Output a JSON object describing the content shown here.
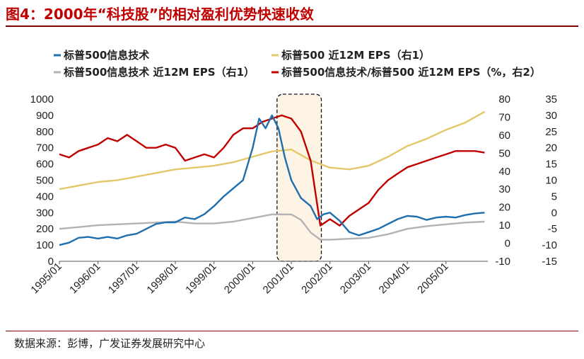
{
  "figure_title": "图4：2000年“科技股”的相对盈利优势快速收敛",
  "source": "数据来源：彭博，广发证券发展研究中心",
  "colors": {
    "blue": "#1f6fae",
    "yellow": "#e3c86a",
    "gray": "#b3b3b3",
    "red": "#c00000",
    "highlight": "#fdf4e6"
  },
  "chart_data": {
    "type": "line",
    "x_labels": [
      "1995/01",
      "1996/01",
      "1997/01",
      "1998/01",
      "1999/01",
      "2000/01",
      "2001/01",
      "2002/01",
      "2003/01",
      "2004/01",
      "2005/01"
    ],
    "left_axis": {
      "min": 0,
      "max": 1000,
      "ticks": [
        "0",
        "100",
        "200",
        "300",
        "400",
        "500",
        "600",
        "700",
        "800",
        "900",
        "1000"
      ]
    },
    "right1_axis": {
      "min": -10,
      "max": 80,
      "ticks": [
        "-10",
        "0",
        "10",
        "20",
        "30",
        "40",
        "50",
        "60",
        "70",
        "80"
      ]
    },
    "right2_axis": {
      "min": -15,
      "max": 35,
      "ticks": [
        "-15",
        "-10",
        "-5",
        "0",
        "5",
        "10",
        "15",
        "20",
        "25",
        "30",
        "35"
      ]
    },
    "highlight_range": [
      "2000/09",
      "2001/09"
    ],
    "series": [
      {
        "name": "标普500信息技术",
        "axis": "left",
        "color": "#1f6fae",
        "points": [
          [
            "1995/01",
            100
          ],
          [
            "1995/04",
            115
          ],
          [
            "1995/07",
            145
          ],
          [
            "1995/10",
            150
          ],
          [
            "1996/01",
            140
          ],
          [
            "1996/04",
            150
          ],
          [
            "1996/07",
            140
          ],
          [
            "1996/10",
            160
          ],
          [
            "1997/01",
            170
          ],
          [
            "1997/04",
            200
          ],
          [
            "1997/07",
            230
          ],
          [
            "1997/10",
            240
          ],
          [
            "1998/01",
            240
          ],
          [
            "1998/04",
            270
          ],
          [
            "1998/07",
            260
          ],
          [
            "1998/10",
            290
          ],
          [
            "1999/01",
            340
          ],
          [
            "1999/04",
            400
          ],
          [
            "1999/07",
            450
          ],
          [
            "1999/10",
            500
          ],
          [
            "2000/01",
            700
          ],
          [
            "2000/03",
            880
          ],
          [
            "2000/05",
            820
          ],
          [
            "2000/07",
            900
          ],
          [
            "2000/09",
            820
          ],
          [
            "2000/11",
            640
          ],
          [
            "2001/01",
            500
          ],
          [
            "2001/04",
            390
          ],
          [
            "2001/07",
            340
          ],
          [
            "2001/09",
            260
          ],
          [
            "2001/11",
            290
          ],
          [
            "2002/01",
            300
          ],
          [
            "2002/04",
            250
          ],
          [
            "2002/07",
            180
          ],
          [
            "2002/10",
            160
          ],
          [
            "2003/01",
            180
          ],
          [
            "2003/04",
            200
          ],
          [
            "2003/07",
            230
          ],
          [
            "2003/10",
            260
          ],
          [
            "2004/01",
            280
          ],
          [
            "2004/04",
            275
          ],
          [
            "2004/07",
            255
          ],
          [
            "2004/10",
            270
          ],
          [
            "2005/01",
            275
          ],
          [
            "2005/04",
            270
          ],
          [
            "2005/07",
            285
          ],
          [
            "2005/10",
            295
          ],
          [
            "2006/01",
            300
          ]
        ]
      },
      {
        "name": "标普500 近12M EPS（右1）",
        "axis": "right1",
        "color": "#e3c86a",
        "points": [
          [
            "1995/01",
            30
          ],
          [
            "1995/07",
            32
          ],
          [
            "1996/01",
            34
          ],
          [
            "1996/07",
            35
          ],
          [
            "1997/01",
            37
          ],
          [
            "1997/07",
            39
          ],
          [
            "1998/01",
            41
          ],
          [
            "1998/07",
            42
          ],
          [
            "1999/01",
            43
          ],
          [
            "1999/07",
            45
          ],
          [
            "2000/01",
            48
          ],
          [
            "2000/07",
            51
          ],
          [
            "2001/01",
            52
          ],
          [
            "2001/07",
            46
          ],
          [
            "2002/01",
            42
          ],
          [
            "2002/07",
            41
          ],
          [
            "2003/01",
            43
          ],
          [
            "2003/07",
            48
          ],
          [
            "2004/01",
            54
          ],
          [
            "2004/07",
            58
          ],
          [
            "2005/01",
            63
          ],
          [
            "2005/07",
            67
          ],
          [
            "2006/01",
            73
          ]
        ]
      },
      {
        "name": "标普500信息技术 近12M EPS（右1）",
        "axis": "right1",
        "color": "#b3b3b3",
        "points": [
          [
            "1995/01",
            8
          ],
          [
            "1995/07",
            9
          ],
          [
            "1996/01",
            10
          ],
          [
            "1996/07",
            10.5
          ],
          [
            "1997/01",
            11
          ],
          [
            "1997/07",
            11.5
          ],
          [
            "1998/01",
            12
          ],
          [
            "1998/07",
            11
          ],
          [
            "1999/01",
            11
          ],
          [
            "1999/07",
            12
          ],
          [
            "2000/01",
            14
          ],
          [
            "2000/07",
            16
          ],
          [
            "2001/01",
            16
          ],
          [
            "2001/04",
            13
          ],
          [
            "2001/07",
            6
          ],
          [
            "2001/10",
            2
          ],
          [
            "2002/01",
            2
          ],
          [
            "2002/07",
            2.5
          ],
          [
            "2003/01",
            3
          ],
          [
            "2003/07",
            5
          ],
          [
            "2004/01",
            8
          ],
          [
            "2004/07",
            9.5
          ],
          [
            "2005/01",
            10.5
          ],
          [
            "2005/07",
            11.5
          ],
          [
            "2006/01",
            12
          ]
        ]
      },
      {
        "name": "标普500信息技术/标普500 近12M EPS（%，右2）",
        "axis": "right2",
        "color": "#c00000",
        "points": [
          [
            "1995/01",
            18
          ],
          [
            "1995/04",
            17
          ],
          [
            "1995/07",
            19
          ],
          [
            "1995/10",
            20
          ],
          [
            "1996/01",
            21
          ],
          [
            "1996/04",
            23
          ],
          [
            "1996/07",
            22
          ],
          [
            "1996/10",
            24
          ],
          [
            "1997/01",
            22
          ],
          [
            "1997/04",
            20
          ],
          [
            "1997/07",
            20
          ],
          [
            "1997/10",
            21
          ],
          [
            "1998/01",
            20
          ],
          [
            "1998/04",
            16
          ],
          [
            "1998/07",
            17
          ],
          [
            "1998/10",
            18
          ],
          [
            "1999/01",
            17
          ],
          [
            "1999/04",
            20
          ],
          [
            "1999/07",
            24
          ],
          [
            "1999/10",
            26
          ],
          [
            "2000/01",
            26
          ],
          [
            "2000/04",
            28
          ],
          [
            "2000/07",
            29
          ],
          [
            "2000/10",
            30
          ],
          [
            "2001/01",
            29
          ],
          [
            "2001/04",
            25
          ],
          [
            "2001/07",
            16
          ],
          [
            "2001/10",
            -4
          ],
          [
            "2002/01",
            -2
          ],
          [
            "2002/04",
            -4
          ],
          [
            "2002/07",
            -1
          ],
          [
            "2002/10",
            1
          ],
          [
            "2003/01",
            3
          ],
          [
            "2003/04",
            7
          ],
          [
            "2003/07",
            10
          ],
          [
            "2003/10",
            12
          ],
          [
            "2004/01",
            14
          ],
          [
            "2004/04",
            15
          ],
          [
            "2004/07",
            16
          ],
          [
            "2004/10",
            17
          ],
          [
            "2005/01",
            18
          ],
          [
            "2005/04",
            19
          ],
          [
            "2005/07",
            19
          ],
          [
            "2005/10",
            19
          ],
          [
            "2006/01",
            18.5
          ]
        ]
      }
    ]
  }
}
